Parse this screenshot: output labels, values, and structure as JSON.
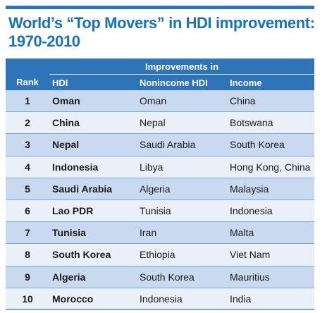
{
  "title": "World’s “Top Movers” in HDI improvement: 1970-2010",
  "table": {
    "group_header": "Improvements in",
    "columns": [
      "Rank",
      "HDI",
      "Nonincome HDI",
      "Income"
    ],
    "rows": [
      {
        "rank": "1",
        "hdi": "Oman",
        "nonincome": "Oman",
        "income": "China"
      },
      {
        "rank": "2",
        "hdi": "China",
        "nonincome": "Nepal",
        "income": "Botswana"
      },
      {
        "rank": "3",
        "hdi": "Nepal",
        "nonincome": "Saudi Arabia",
        "income": "South Korea"
      },
      {
        "rank": "4",
        "hdi": "Indonesia",
        "nonincome": "Libya",
        "income": "Hong Kong, China"
      },
      {
        "rank": "5",
        "hdi": "Saudi Arabia",
        "nonincome": "Algeria",
        "income": "Malaysia"
      },
      {
        "rank": "6",
        "hdi": "Lao PDR",
        "nonincome": "Tunisia",
        "income": "Indonesia"
      },
      {
        "rank": "7",
        "hdi": "Tunisia",
        "nonincome": "Iran",
        "income": "Malta"
      },
      {
        "rank": "8",
        "hdi": "South Korea",
        "nonincome": "Ethiopia",
        "income": "Viet Nam"
      },
      {
        "rank": "9",
        "hdi": "Algeria",
        "nonincome": "South Korea",
        "income": "Mauritius"
      },
      {
        "rank": "10",
        "hdi": "Morocco",
        "nonincome": "Indonesia",
        "income": "India"
      }
    ]
  },
  "colors": {
    "accent": "#2f73b8",
    "title": "#1a72b8",
    "row_dark": "#c9daf0",
    "row_light": "#e9f0f9"
  }
}
